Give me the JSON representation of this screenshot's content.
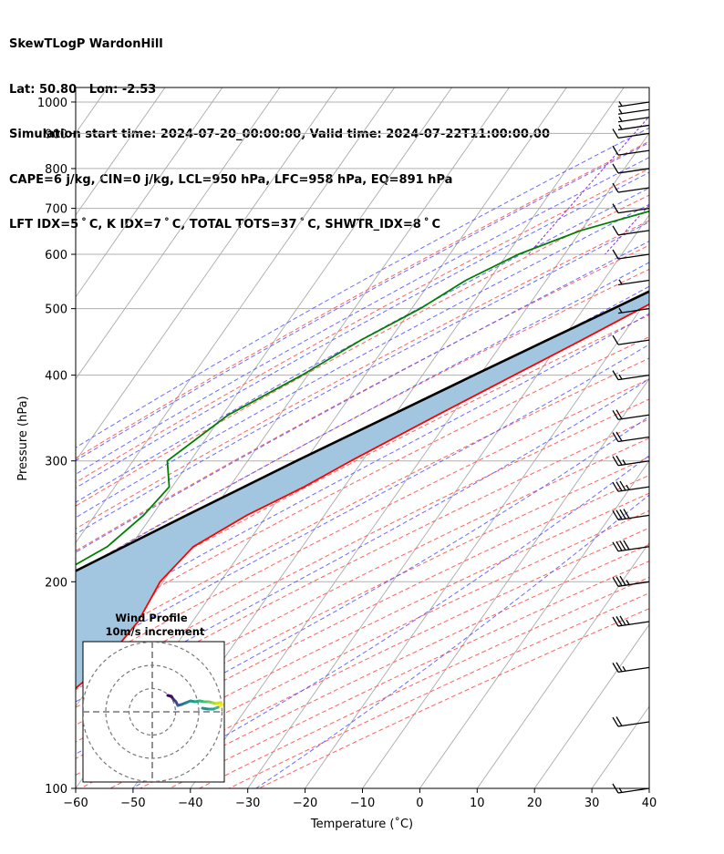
{
  "header": {
    "line1": "SkewTLogP WardonHill",
    "line2": "Lat: 50.80   Lon: -2.53",
    "line3": "Simulation start time: 2024-07-20_00:00:00, Valid time: 2024-07-22T11:00:00.00",
    "line4": "CAPE=6 j/kg, CIN=0 j/kg, LCL=950 hPa, LFC=958 hPa, EQ=891 hPa",
    "line5": "LFT IDX=5 ˚ C, K IDX=7 ˚ C, TOTAL TOTS=37 ˚ C, SHWTR_IDX=8 ˚ C"
  },
  "chart_data": {
    "type": "skewt",
    "xlabel": "Temperature (˚C)",
    "ylabel": "Pressure (hPa)",
    "xlim": [
      -60,
      40
    ],
    "ylim": [
      1050,
      100
    ],
    "x_ticks": [
      -60,
      -50,
      -40,
      -30,
      -20,
      -10,
      0,
      10,
      20,
      30,
      40
    ],
    "y_ticks": [
      100,
      200,
      300,
      400,
      500,
      600,
      700,
      800,
      900,
      1000
    ],
    "y_scale": "log",
    "grid": true,
    "colors": {
      "temperature": "#ff0000",
      "dewpoint": "#008000",
      "parcel": "#000000",
      "cape_fill": "#a3c6e0",
      "dry_adiabats": "#ff6060",
      "moist_adiabats": "#5050ff",
      "mixing_ratio": "#8a2be2",
      "isotherms": "#aaaaaa"
    },
    "temperature": {
      "p": [
        1000,
        975,
        950,
        925,
        900,
        850,
        800,
        750,
        700,
        650,
        600,
        550,
        500,
        450,
        400,
        350,
        300,
        275,
        250,
        225,
        200,
        175,
        150,
        125,
        100
      ],
      "t": [
        18.5,
        16.5,
        16.3,
        15.5,
        14.0,
        11.5,
        8.5,
        5.0,
        0.8,
        -3.8,
        -8.5,
        -14.0,
        -20.0,
        -26.5,
        -34.0,
        -42.5,
        -52.0,
        -57.0,
        -63.5,
        -69.0,
        -70.5,
        -69.5,
        -70.5,
        -75.0,
        -82.0
      ]
    },
    "dewpoint": {
      "p": [
        1000,
        975,
        950,
        925,
        900,
        850,
        800,
        750,
        700,
        650,
        600,
        550,
        500,
        450,
        400,
        350,
        300,
        275,
        250,
        225,
        200,
        175,
        150,
        125,
        100
      ],
      "t": [
        16.0,
        15.8,
        15.5,
        13.8,
        13.5,
        7.0,
        -3.5,
        -15.5,
        -29.0,
        -40.0,
        -48.0,
        -54.0,
        -58.5,
        -65.0,
        -71.0,
        -79.0,
        -84.0,
        -80.5,
        -81.5,
        -84.0,
        -90.5,
        -97.5,
        -107.0,
        -105.0,
        -100.0
      ]
    },
    "parcel": {
      "p": [
        1000,
        975,
        950,
        925,
        900,
        850,
        800,
        750,
        700,
        650,
        600,
        550,
        500,
        450,
        400,
        350,
        300,
        250,
        200,
        150,
        100
      ],
      "t": [
        18.8,
        16.7,
        16.2,
        15.0,
        13.6,
        10.4,
        6.8,
        2.9,
        -1.5,
        -6.5,
        -12.0,
        -18.0,
        -24.8,
        -32.5,
        -41.0,
        -50.5,
        -61.5,
        -74.0,
        -89.0,
        -107.0,
        -130.0
      ]
    },
    "wind": {
      "p": [
        100,
        125,
        150,
        175,
        200,
        225,
        250,
        275,
        300,
        325,
        350,
        400,
        450,
        500,
        550,
        600,
        650,
        700,
        750,
        800,
        850,
        900,
        925,
        950,
        975,
        1000
      ],
      "speed_kt": [
        15,
        20,
        25,
        35,
        35,
        40,
        40,
        35,
        25,
        20,
        20,
        15,
        10,
        5,
        5,
        10,
        10,
        10,
        10,
        10,
        10,
        10,
        5,
        5,
        5,
        5
      ]
    },
    "hodograph": {
      "title_line1": "Wind Profile",
      "title_line2": "10m/s increment",
      "rings_ms": [
        10,
        20,
        30
      ]
    }
  }
}
